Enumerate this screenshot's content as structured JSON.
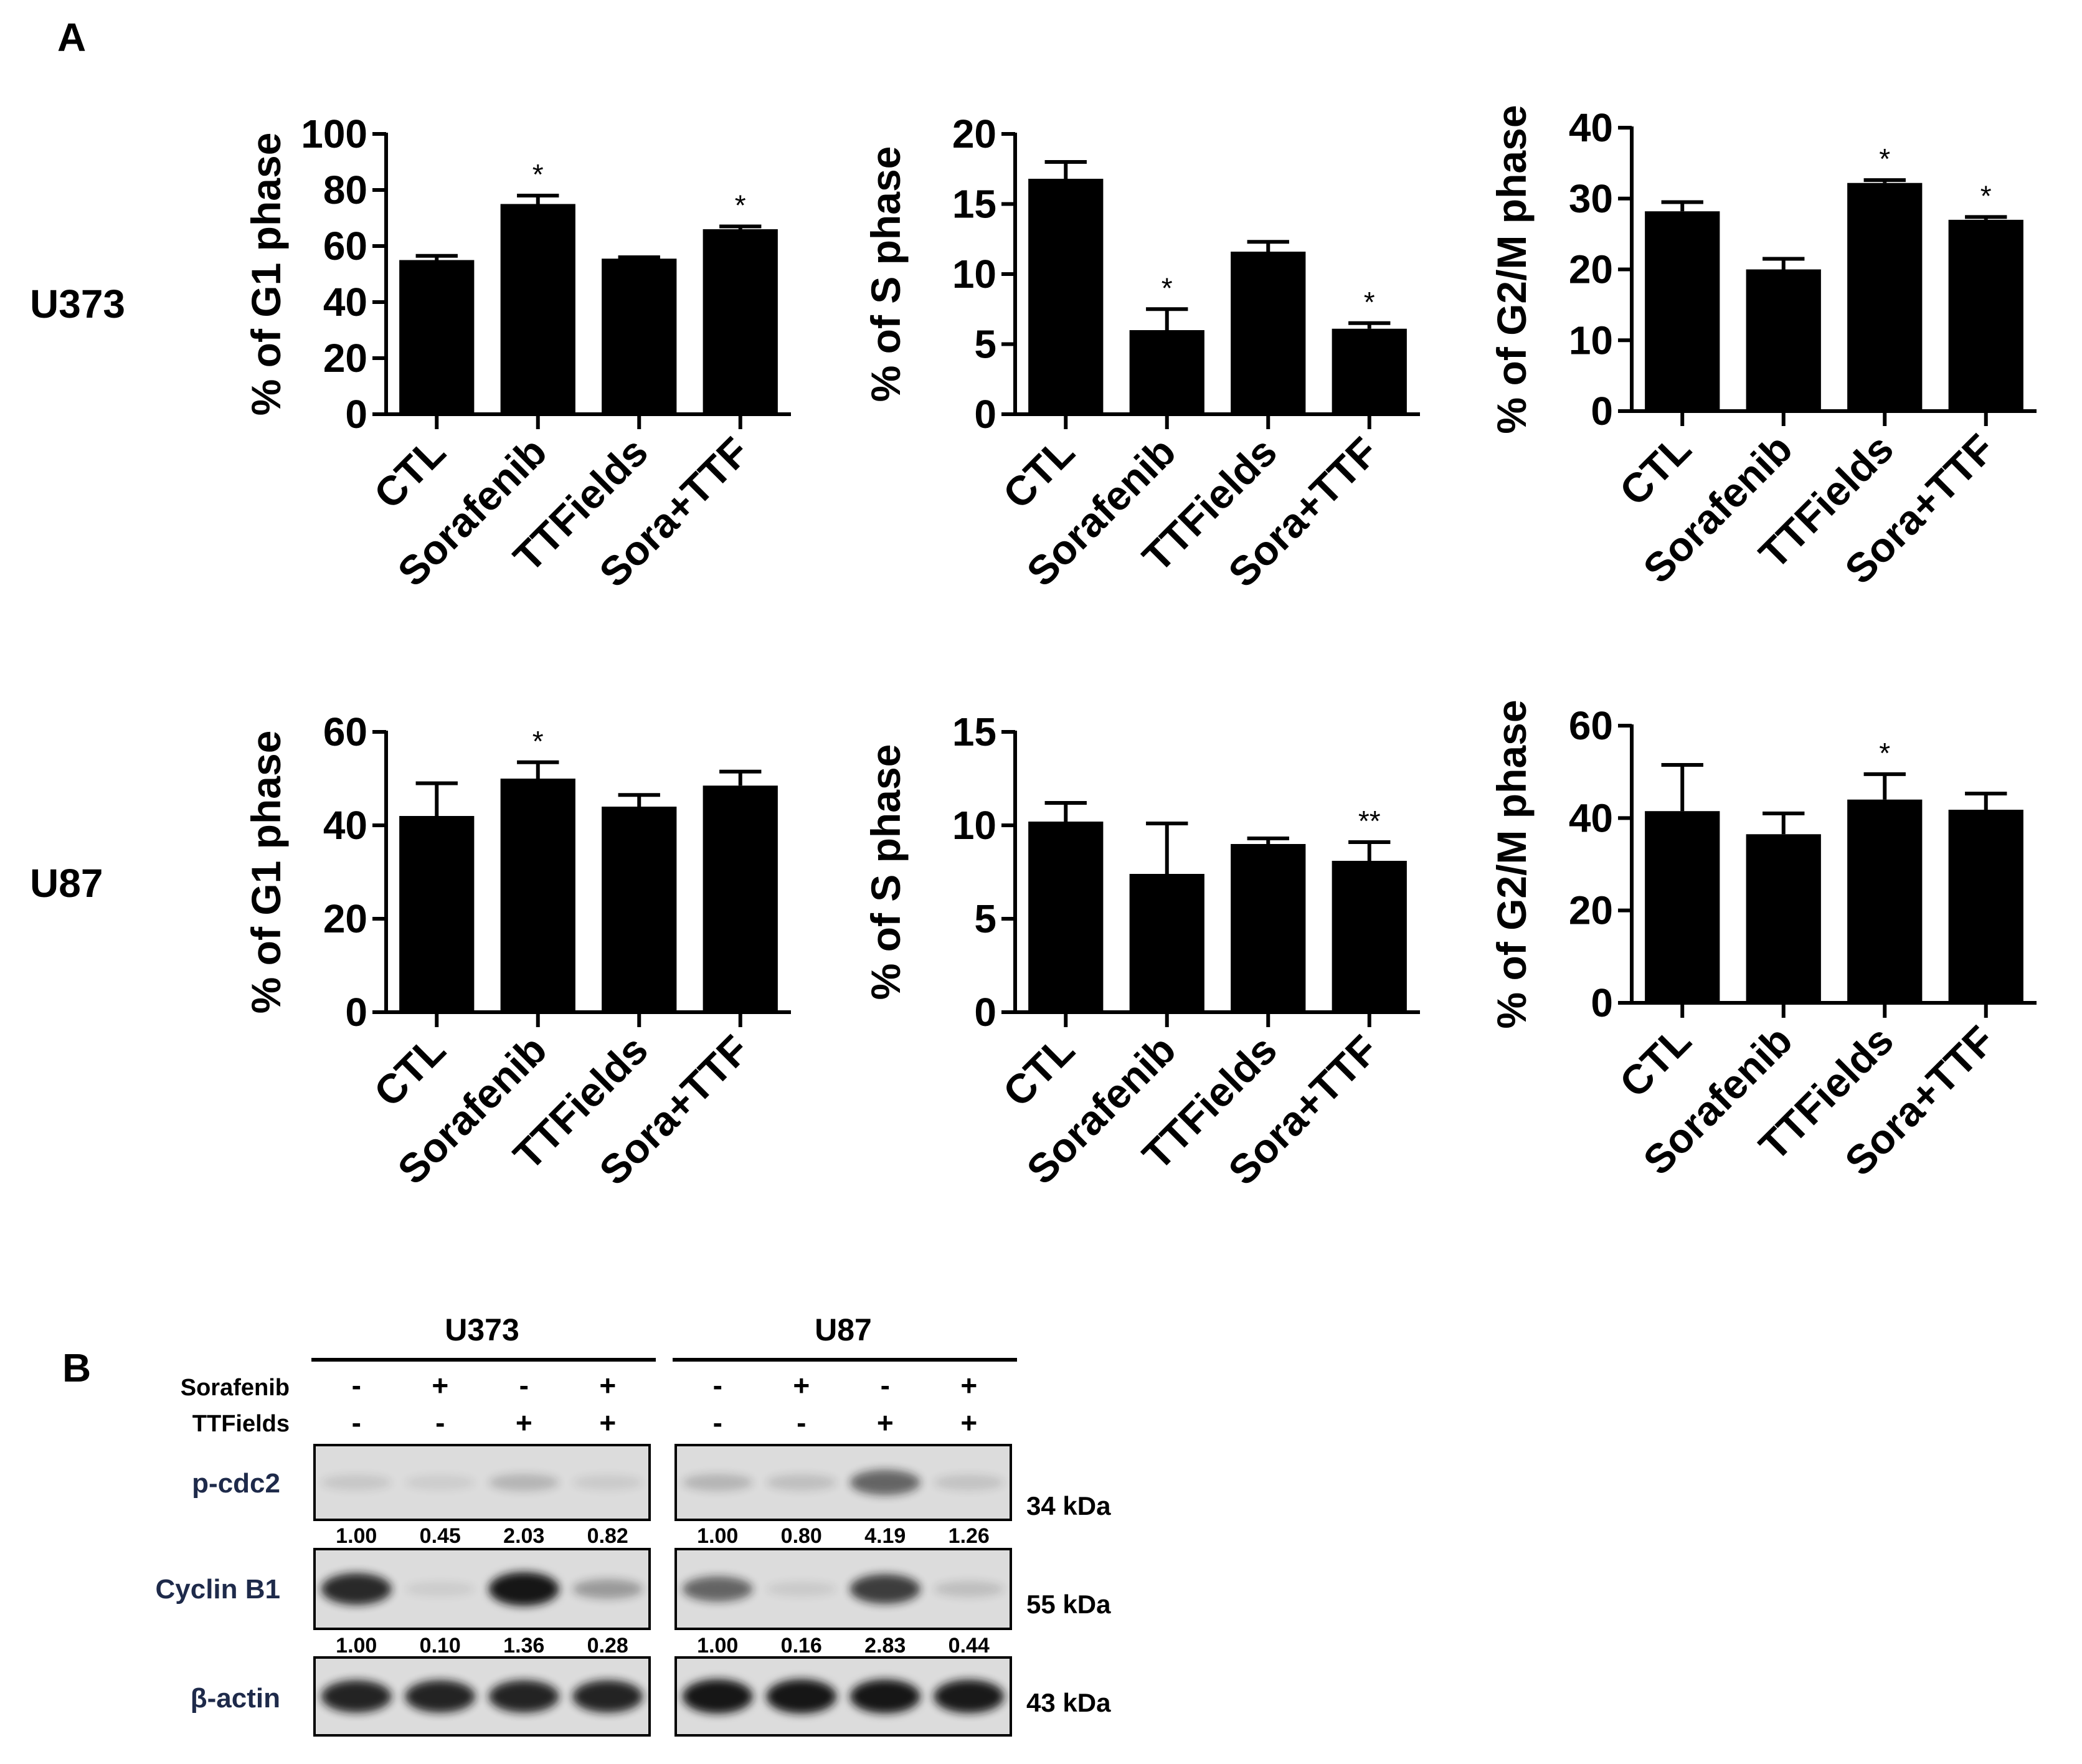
{
  "panel_labels": {
    "a": "A",
    "b": "B"
  },
  "row_labels": [
    "U373",
    "U87"
  ],
  "chart_data": [
    {
      "type": "bar",
      "id": "u373-g1",
      "cell_line": "U373",
      "categories": [
        "CTL",
        "Sorafenib",
        "TTFields",
        "Sora+TTF"
      ],
      "values": [
        55,
        75,
        55.5,
        66
      ],
      "errors": [
        1.5,
        3,
        0.5,
        1
      ],
      "significance": [
        "",
        "*",
        "",
        "*"
      ],
      "ylabel": "% of G1 phase",
      "ylim": [
        0,
        100
      ],
      "yticks": [
        0,
        20,
        40,
        60,
        80,
        100
      ],
      "ytick_labels": [
        "0",
        "20",
        "40",
        "60",
        "80",
        "100"
      ]
    },
    {
      "type": "bar",
      "id": "u373-s",
      "cell_line": "U373",
      "categories": [
        "CTL",
        "Sorafenib",
        "TTFields",
        "Sora+TTF"
      ],
      "values": [
        16.8,
        6,
        11.6,
        6.1
      ],
      "errors": [
        1.2,
        1.5,
        0.7,
        0.4
      ],
      "significance": [
        "",
        "*",
        "",
        "*"
      ],
      "ylabel": "% of S phase",
      "ylim": [
        0,
        20
      ],
      "yticks": [
        0,
        5,
        10,
        15,
        20
      ],
      "ytick_labels": [
        "0",
        "5",
        "10",
        "15",
        "20"
      ]
    },
    {
      "type": "bar",
      "id": "u373-g2m",
      "cell_line": "U373",
      "categories": [
        "CTL",
        "Sorafenib",
        "TTFields",
        "Sora+TTF"
      ],
      "values": [
        28.2,
        20,
        32.2,
        27
      ],
      "errors": [
        1.3,
        1.5,
        0.4,
        0.4
      ],
      "significance": [
        "",
        "",
        "*",
        "*"
      ],
      "ylabel": "% of G2/M phase",
      "ylim": [
        0,
        40
      ],
      "yticks": [
        0,
        10,
        20,
        30,
        40
      ],
      "ytick_labels": [
        "0",
        "10",
        "20",
        "30",
        "40"
      ]
    },
    {
      "type": "bar",
      "id": "u87-g1",
      "cell_line": "U87",
      "categories": [
        "CTL",
        "Sorafenib",
        "TTFields",
        "Sora+TTF"
      ],
      "values": [
        42,
        50,
        44,
        48.5
      ],
      "errors": [
        7,
        3.5,
        2.5,
        3
      ],
      "significance": [
        "",
        "*",
        "",
        ""
      ],
      "ylabel": "% of G1 phase",
      "ylim": [
        0,
        60
      ],
      "yticks": [
        0,
        20,
        40,
        60
      ],
      "ytick_labels": [
        "0",
        "20",
        "40",
        "60"
      ]
    },
    {
      "type": "bar",
      "id": "u87-s",
      "cell_line": "U87",
      "categories": [
        "CTL",
        "Sorafenib",
        "TTFields",
        "Sora+TTF"
      ],
      "values": [
        10.2,
        7.4,
        9,
        8.1
      ],
      "errors": [
        1,
        2.7,
        0.3,
        1
      ],
      "significance": [
        "",
        "",
        "",
        "**"
      ],
      "ylabel": "% of S phase",
      "ylim": [
        0,
        15
      ],
      "yticks": [
        0,
        5,
        10,
        15
      ],
      "ytick_labels": [
        "0",
        "5",
        "10",
        "15"
      ]
    },
    {
      "type": "bar",
      "id": "u87-g2m",
      "cell_line": "U87",
      "categories": [
        "CTL",
        "Sorafenib",
        "TTFields",
        "Sora+TTF"
      ],
      "values": [
        41.5,
        36.5,
        44,
        41.8
      ],
      "errors": [
        10,
        4.5,
        5.5,
        3.5
      ],
      "significance": [
        "",
        "",
        "*",
        ""
      ],
      "ylabel": "% of G2/M phase",
      "ylim": [
        0,
        60
      ],
      "yticks": [
        0,
        20,
        40,
        60
      ],
      "ytick_labels": [
        "0",
        "20",
        "40",
        "60"
      ]
    }
  ],
  "western": {
    "groups": [
      {
        "name": "U373",
        "sorafenib": [
          "-",
          "+",
          "-",
          "+"
        ],
        "ttfields": [
          "-",
          "-",
          "+",
          "+"
        ]
      },
      {
        "name": "U87",
        "sorafenib": [
          "-",
          "+",
          "-",
          "+"
        ],
        "ttfields": [
          "-",
          "-",
          "+",
          "+"
        ]
      }
    ],
    "treatment_labels": [
      "Sorafenib",
      "TTFields"
    ],
    "rows": [
      {
        "label": "p-cdc2",
        "mw": "34  kDa",
        "quant": [
          [
            "1.00",
            "0.45",
            "2.03",
            "0.82"
          ],
          [
            "1.00",
            "0.80",
            "4.19",
            "1.26"
          ]
        ],
        "intensity": [
          [
            0.06,
            0.03,
            0.15,
            0.04
          ],
          [
            0.15,
            0.1,
            0.55,
            0.08
          ]
        ]
      },
      {
        "label": "Cyclin B1",
        "mw": "55  kDa",
        "quant": [
          [
            "1.00",
            "0.10",
            "1.36",
            "0.28"
          ],
          [
            "1.00",
            "0.16",
            "2.83",
            "0.44"
          ]
        ],
        "intensity": [
          [
            0.85,
            0.03,
            0.95,
            0.28
          ],
          [
            0.55,
            0.04,
            0.75,
            0.1
          ]
        ]
      },
      {
        "label": "β-actin",
        "mw": "43  kDa",
        "quant": null,
        "intensity": [
          [
            0.88,
            0.88,
            0.88,
            0.88
          ],
          [
            0.97,
            0.97,
            0.95,
            0.93
          ]
        ]
      }
    ]
  },
  "colors": {
    "bar": "#000000",
    "axis": "#000000",
    "blot_bg": "#dcdcdc",
    "band": "#141414",
    "label_blue": "#1e2a4a"
  }
}
